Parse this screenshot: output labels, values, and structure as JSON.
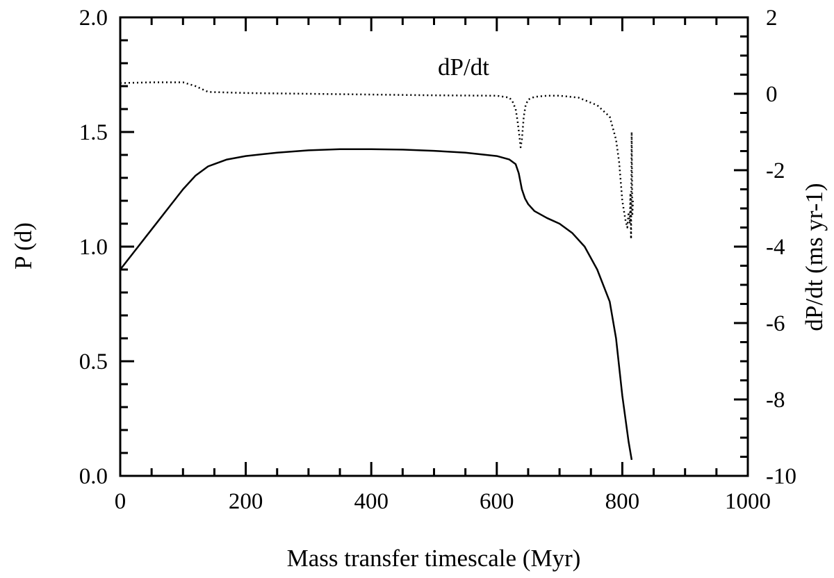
{
  "chart_data": {
    "type": "line",
    "xlabel": "Mass transfer timescale (Myr)",
    "ylabel_left": "P (d)",
    "ylabel_right": "dP/dt (ms yr-1)",
    "annotation": "dP/dt",
    "xlim": [
      0,
      1000
    ],
    "ylim_left": [
      0,
      2.0
    ],
    "ylim_right": [
      -10,
      2
    ],
    "x_ticks": [
      "0",
      "200",
      "400",
      "600",
      "800",
      "1000"
    ],
    "y_left_ticks": [
      "0.0",
      "0.5",
      "1.0",
      "1.5",
      "2.0"
    ],
    "y_right_ticks": [
      "-10",
      "-8",
      "-6",
      "-4",
      "-2",
      "0",
      "2"
    ],
    "grid": false,
    "series": [
      {
        "axis": "left",
        "style": "solid",
        "x": [
          0,
          20,
          40,
          60,
          80,
          100,
          120,
          130,
          140,
          150,
          170,
          200,
          250,
          300,
          350,
          400,
          450,
          500,
          550,
          600,
          620,
          630,
          635,
          640,
          645,
          650,
          660,
          680,
          700,
          720,
          740,
          760,
          780,
          790,
          800,
          805,
          810,
          815
        ],
        "y": [
          0.9,
          0.97,
          1.04,
          1.11,
          1.18,
          1.25,
          1.31,
          1.33,
          1.35,
          1.36,
          1.38,
          1.395,
          1.41,
          1.42,
          1.425,
          1.425,
          1.423,
          1.418,
          1.41,
          1.395,
          1.38,
          1.36,
          1.32,
          1.25,
          1.21,
          1.185,
          1.155,
          1.125,
          1.1,
          1.06,
          1.0,
          0.9,
          0.76,
          0.6,
          0.35,
          0.25,
          0.15,
          0.07
        ]
      },
      {
        "axis": "right",
        "style": "dotted",
        "x": [
          0,
          50,
          100,
          120,
          140,
          200,
          300,
          400,
          500,
          600,
          620,
          625,
          630,
          633,
          636,
          638,
          640,
          643,
          646,
          650,
          660,
          680,
          700,
          730,
          760,
          780,
          790,
          795,
          800,
          805,
          808,
          810,
          812,
          813,
          814,
          815,
          816,
          817
        ],
        "y": [
          0.28,
          0.3,
          0.3,
          0.2,
          0.05,
          0.02,
          0.0,
          -0.02,
          -0.04,
          -0.05,
          -0.1,
          -0.2,
          -0.4,
          -0.7,
          -1.1,
          -1.4,
          -1.2,
          -0.6,
          -0.3,
          -0.15,
          -0.08,
          -0.05,
          -0.05,
          -0.1,
          -0.3,
          -0.6,
          -1.2,
          -1.8,
          -2.8,
          -3.3,
          -3.5,
          -3.1,
          -3.4,
          -2.6,
          -3.8,
          -1.0,
          -3.2,
          -2.8
        ]
      }
    ]
  }
}
